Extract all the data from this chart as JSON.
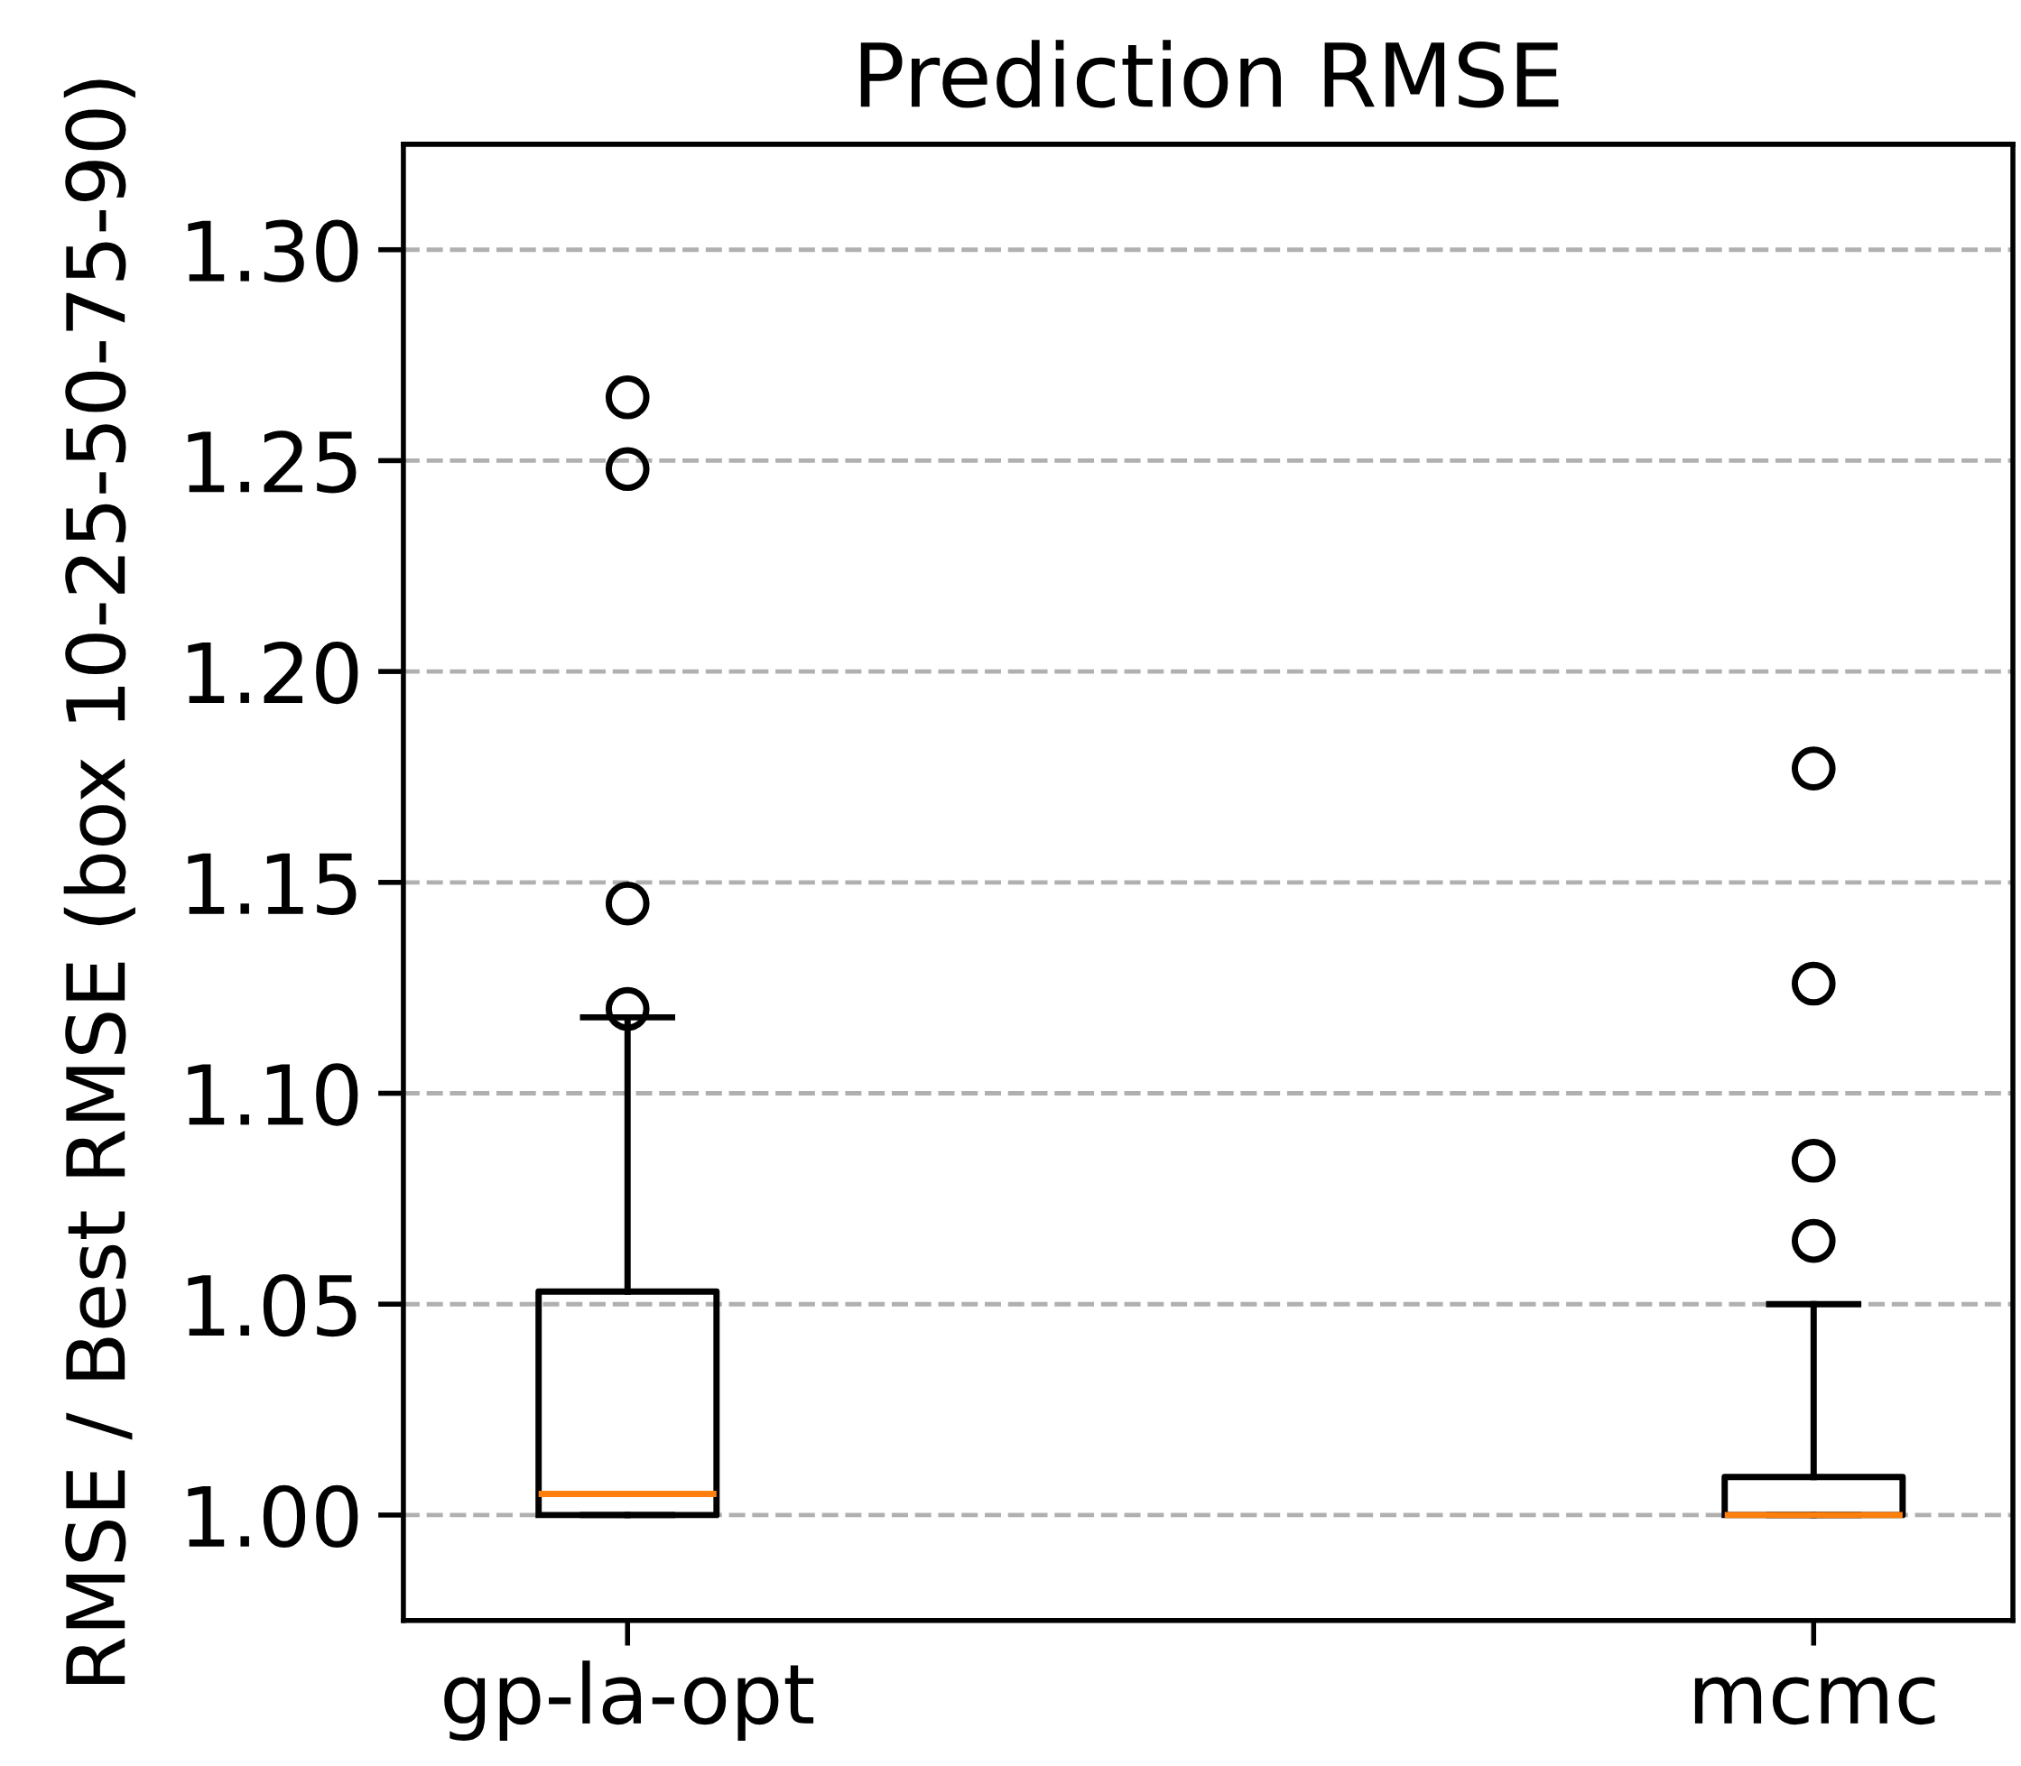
{
  "chart_data": {
    "type": "box",
    "title": "Prediction RMSE",
    "ylabel": "RMSE / Best RMSE (box 10-25-50-75-90)",
    "categories": [
      "gp-la-opt",
      "mcmc"
    ],
    "boxes": [
      {
        "low": 1.0,
        "q1": 1.0,
        "median": 1.005,
        "q3": 1.053,
        "high": 1.118,
        "outliers": [
          1.265,
          1.248,
          1.145,
          1.12
        ]
      },
      {
        "low": 1.0,
        "q1": 1.0,
        "median": 1.0,
        "q3": 1.009,
        "high": 1.05,
        "outliers": [
          1.177,
          1.126,
          1.084,
          1.065
        ]
      }
    ],
    "ylim": [
      0.975,
      1.325
    ],
    "yticks": [
      {
        "value": 1.0,
        "label": "1.00"
      },
      {
        "value": 1.05,
        "label": "1.05"
      },
      {
        "value": 1.1,
        "label": "1.10"
      },
      {
        "value": 1.15,
        "label": "1.15"
      },
      {
        "value": 1.2,
        "label": "1.20"
      },
      {
        "value": 1.25,
        "label": "1.25"
      },
      {
        "value": 1.3,
        "label": "1.30"
      }
    ],
    "grid": "y",
    "color": "#000000"
  }
}
